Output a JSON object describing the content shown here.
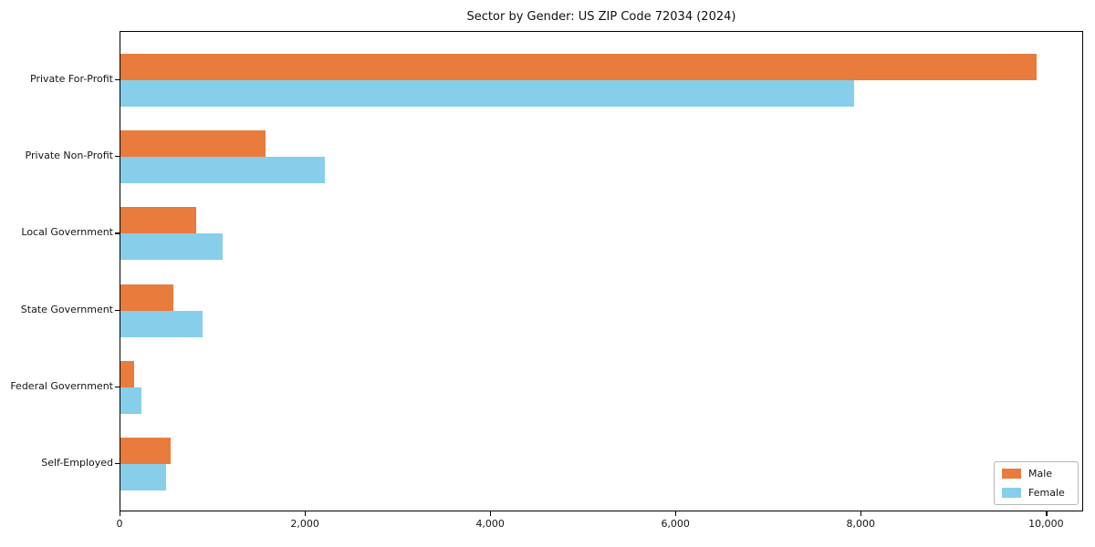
{
  "chart_data": {
    "type": "bar",
    "orientation": "horizontal",
    "title": "Sector by Gender: US ZIP Code 72034 (2024)",
    "categories": [
      "Private For-Profit",
      "Private Non-Profit",
      "Local Government",
      "State Government",
      "Federal Government",
      "Self-Employed"
    ],
    "series": [
      {
        "name": "Male",
        "color": "#E97B3D",
        "values": [
          9890,
          1570,
          820,
          570,
          150,
          540
        ]
      },
      {
        "name": "Female",
        "color": "#87CEEB",
        "values": [
          7920,
          2210,
          1100,
          890,
          230,
          490
        ]
      }
    ],
    "xlabel": "",
    "ylabel": "",
    "xlim": [
      0,
      10400
    ],
    "xticks": [
      0,
      2000,
      4000,
      6000,
      8000,
      10000
    ],
    "xtick_labels": [
      "0",
      "2,000",
      "4,000",
      "6,000",
      "8,000",
      "10,000"
    ],
    "grid": false,
    "legend_position": "lower right",
    "axis_color": "#000000",
    "background_color": "#ffffff"
  }
}
